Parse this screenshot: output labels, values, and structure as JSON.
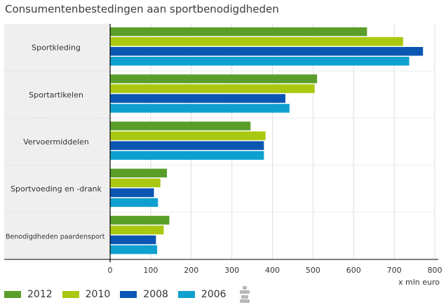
{
  "title": "Consumentenbestedingen aan sportbenodigdheden",
  "colors": {
    "2012": "#5a9e2a",
    "2010": "#a9c80f",
    "2008": "#0b56b3",
    "2006": "#0ea1d0"
  },
  "logo_icon": "cbs-logo-icon",
  "chart_data": {
    "type": "bar",
    "orientation": "horizontal",
    "categories": [
      "Sportkleding",
      "Sportartikelen",
      "Vervoermiddelen",
      "Sportvoeding en -drank",
      "Benodigdheden paardensport"
    ],
    "series": [
      {
        "name": "2012",
        "values": [
          633,
          510,
          346,
          140,
          146
        ]
      },
      {
        "name": "2010",
        "values": [
          722,
          504,
          383,
          124,
          132
        ]
      },
      {
        "name": "2008",
        "values": [
          771,
          432,
          379,
          108,
          113
        ]
      },
      {
        "name": "2006",
        "values": [
          737,
          442,
          379,
          118,
          116
        ]
      }
    ],
    "xlabel": "x mln euro",
    "xlim": [
      0,
      800
    ],
    "xticks": [
      "0",
      "100",
      "200",
      "300",
      "400",
      "500",
      "600",
      "700",
      "800"
    ],
    "grid": true,
    "legend": "bottom"
  }
}
